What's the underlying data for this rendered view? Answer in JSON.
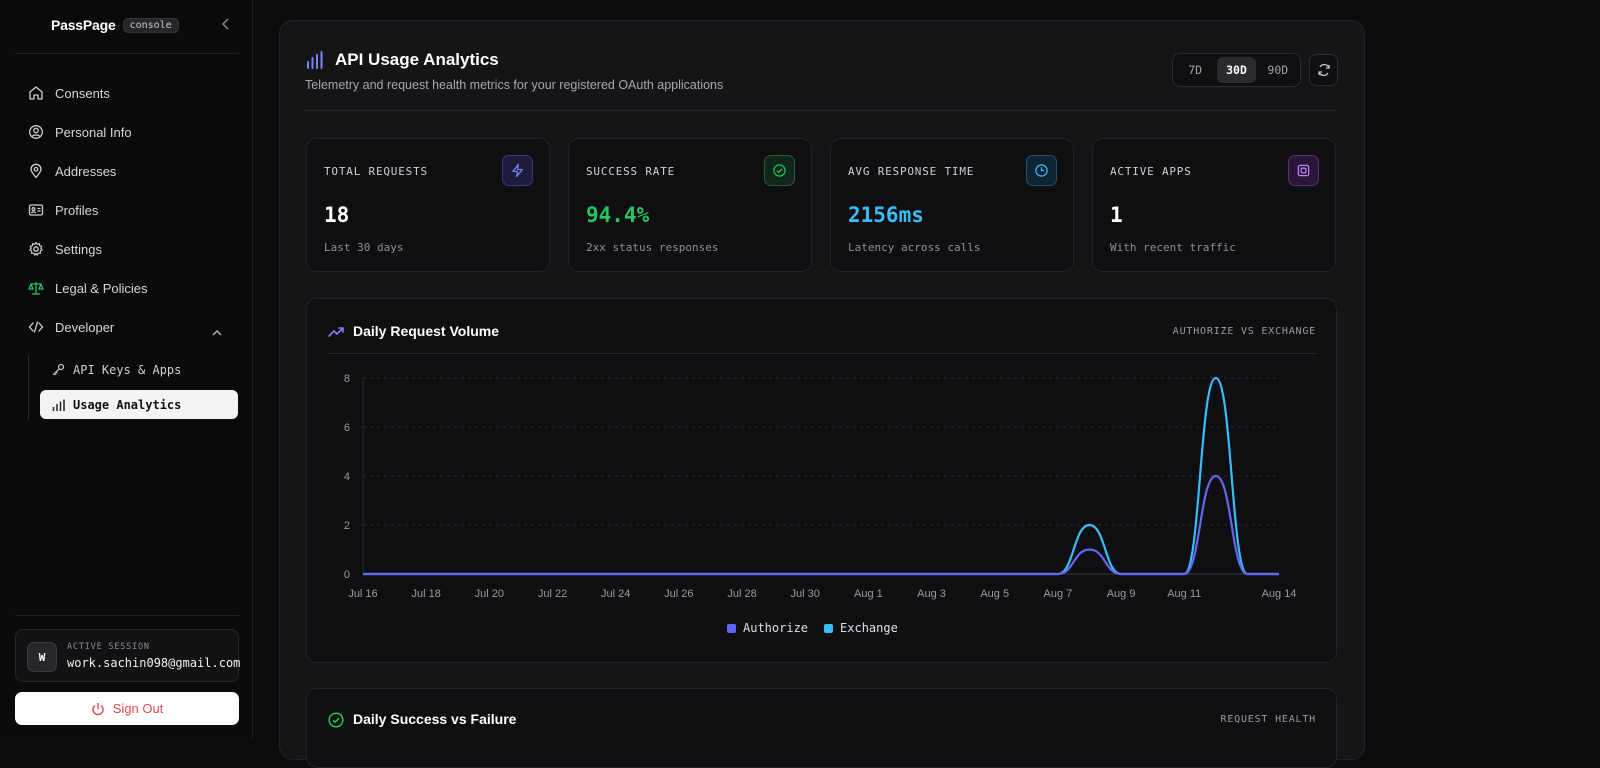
{
  "brand": {
    "name": "PassPage",
    "badge": "console"
  },
  "nav": {
    "items": [
      {
        "label": "Consents",
        "icon": "home-icon"
      },
      {
        "label": "Personal Info",
        "icon": "user-circle-icon"
      },
      {
        "label": "Addresses",
        "icon": "map-pin-icon"
      },
      {
        "label": "Profiles",
        "icon": "id-card-icon"
      },
      {
        "label": "Settings",
        "icon": "gear-icon"
      },
      {
        "label": "Legal & Policies",
        "icon": "scale-icon"
      },
      {
        "label": "Developer",
        "icon": "code-icon"
      }
    ],
    "developer_sub": [
      {
        "label": "API Keys & Apps",
        "icon": "key-icon"
      },
      {
        "label": "Usage Analytics",
        "icon": "bar-chart-icon"
      }
    ]
  },
  "session": {
    "label": "ACTIVE SESSION",
    "email": "work.sachin098@gmail.com",
    "avatar_letter": "W"
  },
  "signout_label": "Sign Out",
  "header": {
    "title": "API Usage Analytics",
    "subtitle": "Telemetry and request health metrics for your registered OAuth applications",
    "ranges": [
      "7D",
      "30D",
      "90D"
    ],
    "active_range": "30D"
  },
  "stats": [
    {
      "label": "TOTAL REQUESTS",
      "value": "18",
      "note": "Last 30 days",
      "value_color": "#ffffff",
      "icon": "bolt-icon",
      "icon_color": "#6366f1"
    },
    {
      "label": "SUCCESS RATE",
      "value": "94.4%",
      "note": "2xx status responses",
      "value_color": "#22c55e",
      "icon": "check-circle-icon",
      "icon_color": "#22c55e"
    },
    {
      "label": "AVG RESPONSE TIME",
      "value": "2156ms",
      "note": "Latency across calls",
      "value_color": "#38bdf8",
      "icon": "clock-icon",
      "icon_color": "#38bdf8"
    },
    {
      "label": "ACTIVE APPS",
      "value": "1",
      "note": "With recent traffic",
      "value_color": "#ffffff",
      "icon": "chip-icon",
      "icon_color": "#a855f7"
    }
  ],
  "volume_card": {
    "title": "Daily Request Volume",
    "tag": "AUTHORIZE VS EXCHANGE"
  },
  "health_card": {
    "title": "Daily Success vs Failure",
    "tag": "REQUEST HEALTH"
  },
  "chart_data": {
    "type": "area",
    "title": "Daily Request Volume",
    "ylim": [
      0,
      8
    ],
    "yticks": [
      0,
      2,
      4,
      6,
      8
    ],
    "grid": true,
    "legend": "bottom-center",
    "x": [
      "Jul 16",
      "Jul 17",
      "Jul 18",
      "Jul 19",
      "Jul 20",
      "Jul 21",
      "Jul 22",
      "Jul 23",
      "Jul 24",
      "Jul 25",
      "Jul 26",
      "Jul 27",
      "Jul 28",
      "Jul 29",
      "Jul 30",
      "Jul 31",
      "Aug 1",
      "Aug 2",
      "Aug 3",
      "Aug 4",
      "Aug 5",
      "Aug 6",
      "Aug 7",
      "Aug 8",
      "Aug 9",
      "Aug 10",
      "Aug 11",
      "Aug 12",
      "Aug 13",
      "Aug 14"
    ],
    "xtick_labels": [
      "Jul 16",
      "Jul 18",
      "Jul 20",
      "Jul 22",
      "Jul 24",
      "Jul 26",
      "Jul 28",
      "Jul 30",
      "Aug 1",
      "Aug 3",
      "Aug 5",
      "Aug 7",
      "Aug 9",
      "Aug 11",
      "Aug 14"
    ],
    "series": [
      {
        "name": "Authorize",
        "color": "#6366f1",
        "values": [
          0,
          0,
          0,
          0,
          0,
          0,
          0,
          0,
          0,
          0,
          0,
          0,
          0,
          0,
          0,
          0,
          0,
          0,
          0,
          0,
          0,
          0,
          0,
          1,
          0,
          0,
          0,
          4,
          0,
          0
        ]
      },
      {
        "name": "Exchange",
        "color": "#38bdf8",
        "values": [
          0,
          0,
          0,
          0,
          0,
          0,
          0,
          0,
          0,
          0,
          0,
          0,
          0,
          0,
          0,
          0,
          0,
          0,
          0,
          0,
          0,
          0,
          0,
          2,
          0,
          0,
          0,
          8,
          0,
          0
        ]
      }
    ]
  }
}
